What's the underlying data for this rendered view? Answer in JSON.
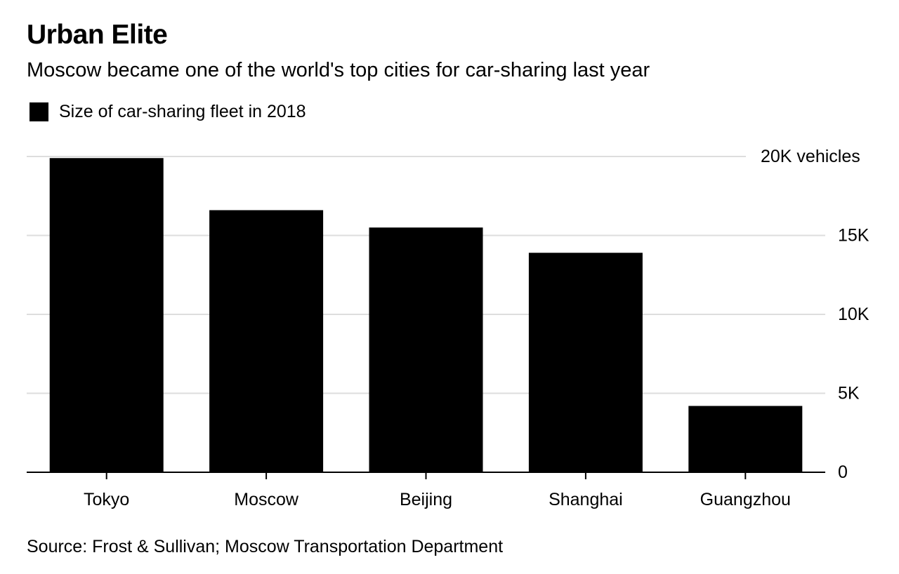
{
  "title": "Urban Elite",
  "subtitle": "Moscow became one of the world's top cities for car-sharing last year",
  "legend": {
    "label": "Size of car-sharing fleet in 2018",
    "color": "#000000"
  },
  "source": "Source: Frost & Sullivan; Moscow Transportation Department",
  "chart_data": {
    "type": "bar",
    "categories": [
      "Tokyo",
      "Moscow",
      "Beijing",
      "Shanghai",
      "Guangzhou"
    ],
    "series": [
      {
        "name": "Size of car-sharing fleet in 2018",
        "values": [
          19900,
          16600,
          15500,
          13900,
          4200
        ]
      }
    ],
    "ylim": [
      0,
      20000
    ],
    "yticks": [
      0,
      5000,
      10000,
      15000,
      20000
    ],
    "ytick_labels": [
      "0",
      "5K",
      "10K",
      "15K",
      "20K vehicles"
    ],
    "y_axis_position": "right",
    "grid": true,
    "legend_position": "top-left",
    "bar_color": "#000000",
    "grid_color": "#dddddd"
  }
}
